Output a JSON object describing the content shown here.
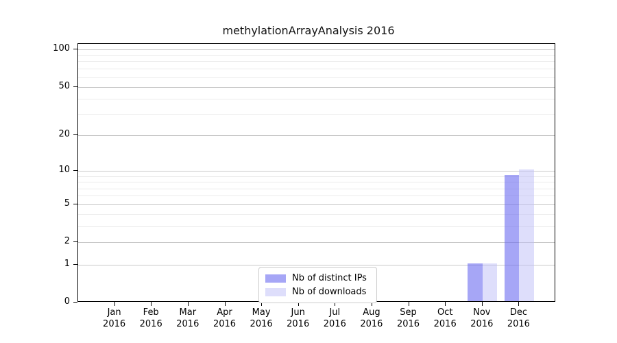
{
  "chart_data": {
    "type": "bar",
    "title": "methylationArrayAnalysis 2016",
    "categories": [
      "Jan 2016",
      "Feb 2016",
      "Mar 2016",
      "Apr 2016",
      "May 2016",
      "Jun 2016",
      "Jul 2016",
      "Aug 2016",
      "Sep 2016",
      "Oct 2016",
      "Nov 2016",
      "Dec 2016"
    ],
    "series": [
      {
        "name": "Nb of distinct IPs",
        "values": [
          0,
          0,
          0,
          0,
          0,
          0,
          0,
          0,
          0,
          0,
          1,
          9
        ],
        "color": "#6a6af0",
        "alpha": 0.6
      },
      {
        "name": "Nb of downloads",
        "values": [
          0,
          0,
          0,
          0,
          0,
          0,
          0,
          0,
          0,
          0,
          1,
          10
        ],
        "color": "#bebef8",
        "alpha": 0.5
      }
    ],
    "xlabel": "",
    "ylabel": "",
    "y_axis": {
      "scale": "log1p",
      "major_ticks": [
        0,
        1,
        2,
        5,
        10,
        20,
        50,
        100
      ],
      "minor_gridlines": [
        3,
        4,
        6,
        7,
        8,
        9,
        30,
        40,
        60,
        70,
        80,
        90
      ],
      "ylim": [
        0,
        110
      ]
    },
    "grid": true,
    "legend_position": "inside-bottom-center",
    "colors": {
      "major_gridline": "#c9c9c9",
      "minor_gridline": "#ebebeb",
      "axis": "#000000",
      "background": "#ffffff"
    }
  }
}
